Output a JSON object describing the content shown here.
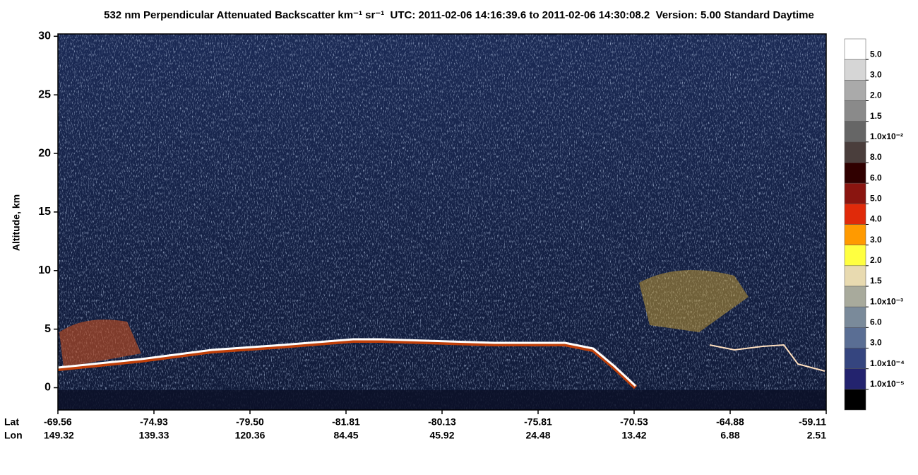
{
  "chart_data": {
    "type": "curtain",
    "title": "532 nm Perpendicular Attenuated Backscatter km⁻¹ sr⁻¹  UTC: 2011-02-06 14:16:39.6 to 2011-02-06 14:30:08.2  Version: 5.00 Standard Daytime",
    "y_label": "Altitude, km",
    "ylim": [
      -1.9,
      30.2
    ],
    "yticks": [
      0,
      5,
      10,
      15,
      20,
      25,
      30
    ],
    "x_row_labels": [
      "Lat",
      "Lon"
    ],
    "lat": [
      "-69.56",
      "-74.93",
      "-79.50",
      "-81.81",
      "-80.13",
      "-75.81",
      "-70.53",
      "-64.88",
      "-59.11"
    ],
    "lon": [
      "149.32",
      "139.33",
      "120.36",
      "84.45",
      "45.92",
      "24.48",
      "13.42",
      "6.88",
      "2.51"
    ],
    "colorbar": {
      "colors": [
        "#ffffff",
        "#d6d6d6",
        "#aaaaaa",
        "#8a8a8a",
        "#666666",
        "#4a3e3c",
        "#300000",
        "#8a1510",
        "#e02a0a",
        "#ff9a00",
        "#ffff40",
        "#e8dab0",
        "#a8aa9c",
        "#7a8a9a",
        "#5a6e94",
        "#35457f",
        "#23236e",
        "#000000"
      ],
      "labels": [
        "5.0",
        "3.0",
        "2.0",
        "1.5",
        "1.0x10⁻²",
        "8.0",
        "6.0",
        "5.0",
        "4.0",
        "3.0",
        "2.0",
        "1.5",
        "1.0x10⁻³",
        "6.0",
        "3.0",
        "1.0x10⁻⁴",
        "1.0x10⁻⁵"
      ]
    }
  }
}
